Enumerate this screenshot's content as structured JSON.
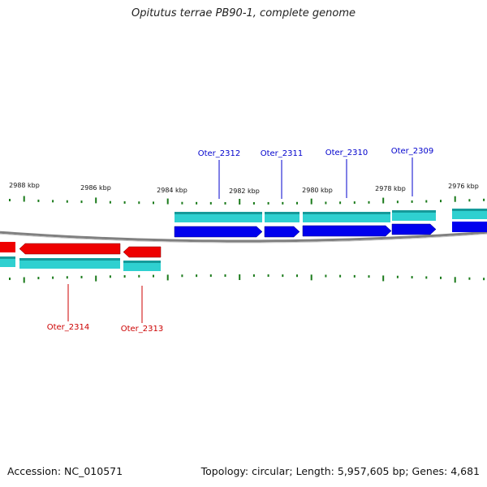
{
  "title": "Opitutus terrae PB90-1, complete genome",
  "footer": {
    "accession": "Accession: NC_010571",
    "summary": "Topology: circular; Length: 5,957,605 bp; Genes: 4,681"
  },
  "colors": {
    "forward_cds": "#0000ee",
    "reverse_cds": "#ee0000",
    "feature_track": "#2fd0d0",
    "backbone": "#808080",
    "ticks": "#1a7a1a",
    "forward_label": "#0000cc",
    "reverse_label": "#cc0000"
  },
  "axis": {
    "tick_labels": [
      "2988 kbp",
      "2986 kbp",
      "2984 kbp",
      "2982 kbp",
      "2980 kbp",
      "2978 kbp",
      "2976 kbp"
    ]
  },
  "genes": {
    "forward": [
      {
        "locus_tag": "Oter_2312"
      },
      {
        "locus_tag": "Oter_2311"
      },
      {
        "locus_tag": "Oter_2310"
      },
      {
        "locus_tag": "Oter_2309"
      }
    ],
    "reverse": [
      {
        "locus_tag": "Oter_2314"
      },
      {
        "locus_tag": "Oter_2313"
      }
    ]
  }
}
